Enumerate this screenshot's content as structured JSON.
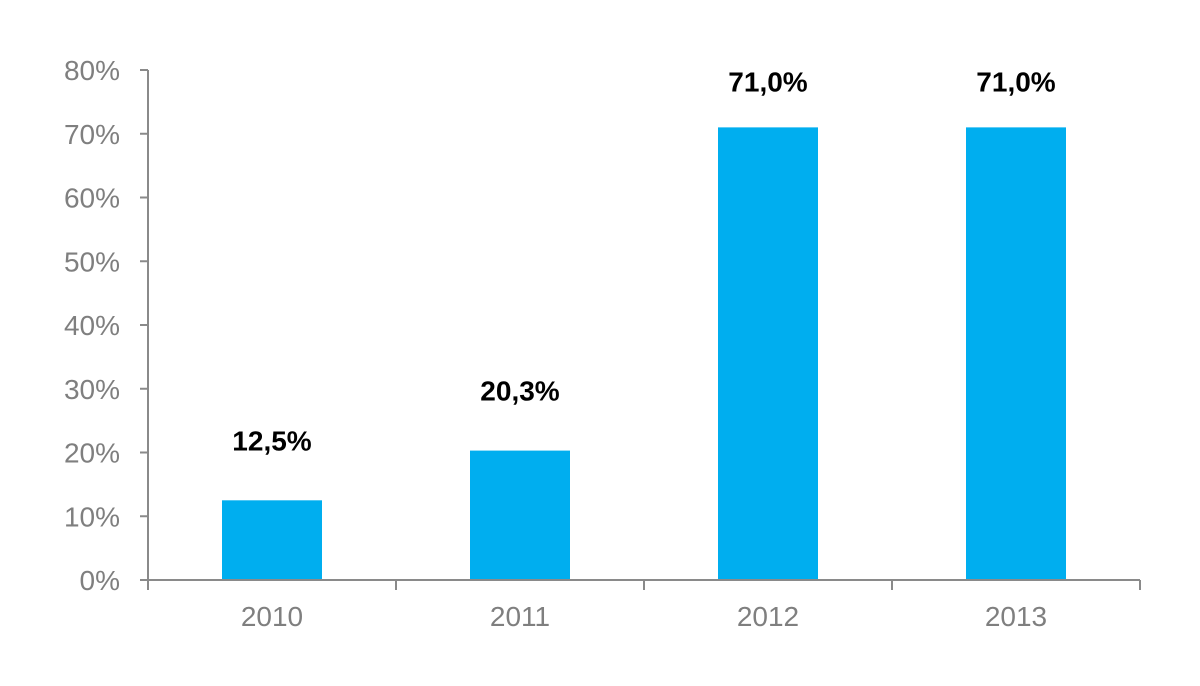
{
  "chart_data": {
    "type": "bar",
    "title": "",
    "xlabel": "",
    "ylabel": "",
    "categories": [
      "2010",
      "2011",
      "2012",
      "2013"
    ],
    "values": [
      12.5,
      20.3,
      71.0,
      71.0
    ],
    "data_labels": [
      "12,5%",
      "20,3%",
      "71,0%",
      "71,0%"
    ],
    "y_ticks": [
      0,
      10,
      20,
      30,
      40,
      50,
      60,
      70,
      80
    ],
    "y_tick_labels": [
      "0%",
      "10%",
      "20%",
      "30%",
      "40%",
      "50%",
      "60%",
      "70%",
      "80%"
    ],
    "ylim": [
      0,
      80
    ],
    "grid": false,
    "legend": "none",
    "colors": {
      "bar": "#00AEEF",
      "axis": "#8A8A8A",
      "tick_text": "#7F7F7F",
      "data_label_text": "#000000"
    }
  }
}
